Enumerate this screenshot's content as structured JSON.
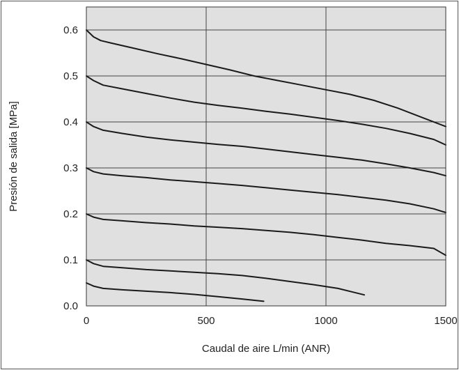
{
  "chart_data": {
    "type": "line",
    "title": "",
    "xlabel": "Caudal de aire L/min (ANR)",
    "ylabel": "Presión de salida [MPa]",
    "xlim": [
      0,
      1500
    ],
    "ylim": [
      0,
      0.65
    ],
    "x_ticks": [
      "0",
      "500",
      "1000",
      "1500"
    ],
    "y_ticks": [
      "0.0",
      "0.1",
      "0.2",
      "0.3",
      "0.4",
      "0.5",
      "0.6"
    ],
    "x_tick_values": [
      0,
      500,
      1000,
      1500
    ],
    "y_tick_values": [
      0,
      0.1,
      0.2,
      0.3,
      0.4,
      0.5,
      0.6
    ],
    "grid": true,
    "background": "#e0e0e0",
    "line_color": "#1a1a1a",
    "series": [
      {
        "x": [
          0,
          30,
          60,
          100,
          200,
          300,
          400,
          500,
          600,
          700,
          800,
          900,
          1000,
          1100,
          1200,
          1300,
          1400,
          1500
        ],
        "y": [
          0.6,
          0.585,
          0.577,
          0.572,
          0.56,
          0.548,
          0.537,
          0.525,
          0.513,
          0.5,
          0.49,
          0.48,
          0.47,
          0.46,
          0.447,
          0.43,
          0.41,
          0.39
        ]
      },
      {
        "x": [
          0,
          30,
          70,
          150,
          250,
          350,
          450,
          550,
          650,
          750,
          850,
          950,
          1050,
          1150,
          1250,
          1350,
          1450,
          1500
        ],
        "y": [
          0.5,
          0.49,
          0.48,
          0.472,
          0.462,
          0.452,
          0.443,
          0.436,
          0.43,
          0.423,
          0.417,
          0.41,
          0.403,
          0.395,
          0.386,
          0.375,
          0.362,
          0.35
        ]
      },
      {
        "x": [
          0,
          30,
          70,
          150,
          250,
          350,
          450,
          550,
          650,
          750,
          850,
          950,
          1050,
          1150,
          1250,
          1350,
          1450,
          1500
        ],
        "y": [
          0.4,
          0.39,
          0.382,
          0.375,
          0.367,
          0.361,
          0.356,
          0.351,
          0.347,
          0.341,
          0.335,
          0.329,
          0.323,
          0.317,
          0.309,
          0.3,
          0.29,
          0.283
        ]
      },
      {
        "x": [
          0,
          30,
          70,
          150,
          250,
          350,
          450,
          550,
          650,
          750,
          850,
          950,
          1050,
          1150,
          1250,
          1350,
          1450,
          1500
        ],
        "y": [
          0.3,
          0.292,
          0.287,
          0.283,
          0.279,
          0.274,
          0.27,
          0.266,
          0.262,
          0.257,
          0.252,
          0.247,
          0.242,
          0.236,
          0.23,
          0.222,
          0.211,
          0.203
        ]
      },
      {
        "x": [
          0,
          30,
          70,
          150,
          250,
          350,
          450,
          550,
          650,
          750,
          850,
          950,
          1050,
          1150,
          1250,
          1350,
          1450,
          1500
        ],
        "y": [
          0.2,
          0.193,
          0.188,
          0.185,
          0.181,
          0.178,
          0.174,
          0.171,
          0.168,
          0.164,
          0.16,
          0.155,
          0.149,
          0.143,
          0.136,
          0.131,
          0.125,
          0.11
        ]
      },
      {
        "x": [
          0,
          30,
          70,
          150,
          250,
          350,
          450,
          550,
          650,
          750,
          850,
          950,
          1050,
          1160
        ],
        "y": [
          0.1,
          0.092,
          0.086,
          0.083,
          0.079,
          0.076,
          0.073,
          0.07,
          0.066,
          0.06,
          0.053,
          0.046,
          0.038,
          0.024
        ]
      },
      {
        "x": [
          0,
          30,
          70,
          150,
          250,
          350,
          450,
          550,
          650,
          740
        ],
        "y": [
          0.05,
          0.043,
          0.038,
          0.035,
          0.032,
          0.029,
          0.025,
          0.02,
          0.015,
          0.01
        ]
      }
    ]
  }
}
